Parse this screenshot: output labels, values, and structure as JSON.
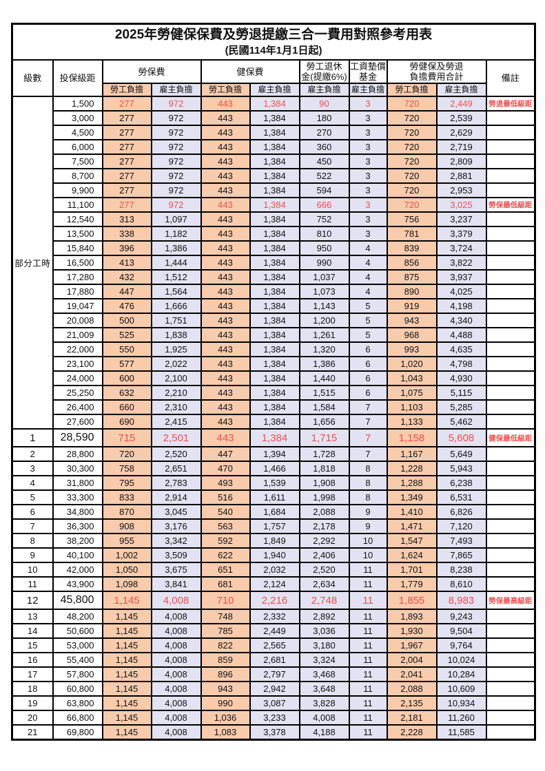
{
  "title": "2025年勞健保保費及勞退提繳三合一費用對照參考用表",
  "subtitle": "(民國114年1月1日起)",
  "colors": {
    "employee_col_bg": "#F8CBAD",
    "employer_col_bg": "#E2E2F2",
    "highlight_text": "#F0504F",
    "border": "#000000"
  },
  "header": {
    "level": "級數",
    "bracket": "投保級距",
    "labor": "勞保費",
    "health": "健保費",
    "pension_l1": "勞工退休",
    "pension_l2": "金(提繳6%)",
    "wage_l1": "工資墊償",
    "wage_l2": "基金",
    "total_l1": "勞健保及勞退",
    "total_l2": "負擔費用合計",
    "remark": "備註",
    "emp": "勞工負擔",
    "er": "雇主負擔"
  },
  "table": {
    "group_label": "部分工時",
    "group_span": 23,
    "value_col_styles": [
      "c-emp",
      "c-er",
      "c-emp",
      "c-er",
      "c-er",
      "c-er",
      "c-emp",
      "c-er"
    ],
    "rows": [
      {
        "level": "",
        "bracket": "1,500",
        "v": [
          "277",
          "972",
          "443",
          "1,384",
          "90",
          "3",
          "720",
          "2,449"
        ],
        "remark": "勞退最低級距",
        "red": true,
        "tall": false
      },
      {
        "level": "",
        "bracket": "3,000",
        "v": [
          "277",
          "972",
          "443",
          "1,384",
          "180",
          "3",
          "720",
          "2,539"
        ],
        "remark": "",
        "red": false,
        "tall": false
      },
      {
        "level": "",
        "bracket": "4,500",
        "v": [
          "277",
          "972",
          "443",
          "1,384",
          "270",
          "3",
          "720",
          "2,629"
        ],
        "remark": "",
        "red": false,
        "tall": false
      },
      {
        "level": "",
        "bracket": "6,000",
        "v": [
          "277",
          "972",
          "443",
          "1,384",
          "360",
          "3",
          "720",
          "2,719"
        ],
        "remark": "",
        "red": false,
        "tall": false
      },
      {
        "level": "",
        "bracket": "7,500",
        "v": [
          "277",
          "972",
          "443",
          "1,384",
          "450",
          "3",
          "720",
          "2,809"
        ],
        "remark": "",
        "red": false,
        "tall": false
      },
      {
        "level": "",
        "bracket": "8,700",
        "v": [
          "277",
          "972",
          "443",
          "1,384",
          "522",
          "3",
          "720",
          "2,881"
        ],
        "remark": "",
        "red": false,
        "tall": false
      },
      {
        "level": "",
        "bracket": "9,900",
        "v": [
          "277",
          "972",
          "443",
          "1,384",
          "594",
          "3",
          "720",
          "2,953"
        ],
        "remark": "",
        "red": false,
        "tall": false
      },
      {
        "level": "",
        "bracket": "11,100",
        "v": [
          "277",
          "972",
          "443",
          "1,384",
          "666",
          "3",
          "720",
          "3,025"
        ],
        "remark": "勞保最低級距",
        "red": true,
        "tall": false
      },
      {
        "level": "",
        "bracket": "12,540",
        "v": [
          "313",
          "1,097",
          "443",
          "1,384",
          "752",
          "3",
          "756",
          "3,237"
        ],
        "remark": "",
        "red": false,
        "tall": false
      },
      {
        "level": "",
        "bracket": "13,500",
        "v": [
          "338",
          "1,182",
          "443",
          "1,384",
          "810",
          "3",
          "781",
          "3,379"
        ],
        "remark": "",
        "red": false,
        "tall": false
      },
      {
        "level": "",
        "bracket": "15,840",
        "v": [
          "396",
          "1,386",
          "443",
          "1,384",
          "950",
          "4",
          "839",
          "3,724"
        ],
        "remark": "",
        "red": false,
        "tall": false
      },
      {
        "level": "",
        "bracket": "16,500",
        "v": [
          "413",
          "1,444",
          "443",
          "1,384",
          "990",
          "4",
          "856",
          "3,822"
        ],
        "remark": "",
        "red": false,
        "tall": false
      },
      {
        "level": "",
        "bracket": "17,280",
        "v": [
          "432",
          "1,512",
          "443",
          "1,384",
          "1,037",
          "4",
          "875",
          "3,937"
        ],
        "remark": "",
        "red": false,
        "tall": false
      },
      {
        "level": "",
        "bracket": "17,880",
        "v": [
          "447",
          "1,564",
          "443",
          "1,384",
          "1,073",
          "4",
          "890",
          "4,025"
        ],
        "remark": "",
        "red": false,
        "tall": false
      },
      {
        "level": "",
        "bracket": "19,047",
        "v": [
          "476",
          "1,666",
          "443",
          "1,384",
          "1,143",
          "5",
          "919",
          "4,198"
        ],
        "remark": "",
        "red": false,
        "tall": false
      },
      {
        "level": "",
        "bracket": "20,008",
        "v": [
          "500",
          "1,751",
          "443",
          "1,384",
          "1,200",
          "5",
          "943",
          "4,340"
        ],
        "remark": "",
        "red": false,
        "tall": false
      },
      {
        "level": "",
        "bracket": "21,009",
        "v": [
          "525",
          "1,838",
          "443",
          "1,384",
          "1,261",
          "5",
          "968",
          "4,488"
        ],
        "remark": "",
        "red": false,
        "tall": false
      },
      {
        "level": "",
        "bracket": "22,000",
        "v": [
          "550",
          "1,925",
          "443",
          "1,384",
          "1,320",
          "6",
          "993",
          "4,635"
        ],
        "remark": "",
        "red": false,
        "tall": false
      },
      {
        "level": "",
        "bracket": "23,100",
        "v": [
          "577",
          "2,022",
          "443",
          "1,384",
          "1,386",
          "6",
          "1,020",
          "4,798"
        ],
        "remark": "",
        "red": false,
        "tall": false
      },
      {
        "level": "",
        "bracket": "24,000",
        "v": [
          "600",
          "2,100",
          "443",
          "1,384",
          "1,440",
          "6",
          "1,043",
          "4,930"
        ],
        "remark": "",
        "red": false,
        "tall": false
      },
      {
        "level": "",
        "bracket": "25,250",
        "v": [
          "632",
          "2,210",
          "443",
          "1,384",
          "1,515",
          "6",
          "1,075",
          "5,115"
        ],
        "remark": "",
        "red": false,
        "tall": false
      },
      {
        "level": "",
        "bracket": "26,400",
        "v": [
          "660",
          "2,310",
          "443",
          "1,384",
          "1,584",
          "7",
          "1,103",
          "5,285"
        ],
        "remark": "",
        "red": false,
        "tall": false
      },
      {
        "level": "",
        "bracket": "27,600",
        "v": [
          "690",
          "2,415",
          "443",
          "1,384",
          "1,656",
          "7",
          "1,133",
          "5,462"
        ],
        "remark": "",
        "red": false,
        "tall": false
      },
      {
        "level": "1",
        "bracket": "28,590",
        "v": [
          "715",
          "2,501",
          "443",
          "1,384",
          "1,715",
          "7",
          "1,158",
          "5,608"
        ],
        "remark": "健保最低級距",
        "red": true,
        "tall": true
      },
      {
        "level": "2",
        "bracket": "28,800",
        "v": [
          "720",
          "2,520",
          "447",
          "1,394",
          "1,728",
          "7",
          "1,167",
          "5,649"
        ],
        "remark": "",
        "red": false,
        "tall": false
      },
      {
        "level": "3",
        "bracket": "30,300",
        "v": [
          "758",
          "2,651",
          "470",
          "1,466",
          "1,818",
          "8",
          "1,228",
          "5,943"
        ],
        "remark": "",
        "red": false,
        "tall": false
      },
      {
        "level": "4",
        "bracket": "31,800",
        "v": [
          "795",
          "2,783",
          "493",
          "1,539",
          "1,908",
          "8",
          "1,288",
          "6,238"
        ],
        "remark": "",
        "red": false,
        "tall": false
      },
      {
        "level": "5",
        "bracket": "33,300",
        "v": [
          "833",
          "2,914",
          "516",
          "1,611",
          "1,998",
          "8",
          "1,349",
          "6,531"
        ],
        "remark": "",
        "red": false,
        "tall": false
      },
      {
        "level": "6",
        "bracket": "34,800",
        "v": [
          "870",
          "3,045",
          "540",
          "1,684",
          "2,088",
          "9",
          "1,410",
          "6,826"
        ],
        "remark": "",
        "red": false,
        "tall": false
      },
      {
        "level": "7",
        "bracket": "36,300",
        "v": [
          "908",
          "3,176",
          "563",
          "1,757",
          "2,178",
          "9",
          "1,471",
          "7,120"
        ],
        "remark": "",
        "red": false,
        "tall": false
      },
      {
        "level": "8",
        "bracket": "38,200",
        "v": [
          "955",
          "3,342",
          "592",
          "1,849",
          "2,292",
          "10",
          "1,547",
          "7,493"
        ],
        "remark": "",
        "red": false,
        "tall": false
      },
      {
        "level": "9",
        "bracket": "40,100",
        "v": [
          "1,002",
          "3,509",
          "622",
          "1,940",
          "2,406",
          "10",
          "1,624",
          "7,865"
        ],
        "remark": "",
        "red": false,
        "tall": false
      },
      {
        "level": "10",
        "bracket": "42,000",
        "v": [
          "1,050",
          "3,675",
          "651",
          "2,032",
          "2,520",
          "11",
          "1,701",
          "8,238"
        ],
        "remark": "",
        "red": false,
        "tall": false
      },
      {
        "level": "11",
        "bracket": "43,900",
        "v": [
          "1,098",
          "3,841",
          "681",
          "2,124",
          "2,634",
          "11",
          "1,779",
          "8,610"
        ],
        "remark": "",
        "red": false,
        "tall": false
      },
      {
        "level": "12",
        "bracket": "45,800",
        "v": [
          "1,145",
          "4,008",
          "710",
          "2,216",
          "2,748",
          "11",
          "1,855",
          "8,983"
        ],
        "remark": "勞保最高級距",
        "red": true,
        "tall": true
      },
      {
        "level": "13",
        "bracket": "48,200",
        "v": [
          "1,145",
          "4,008",
          "748",
          "2,332",
          "2,892",
          "11",
          "1,893",
          "9,243"
        ],
        "remark": "",
        "red": false,
        "tall": false
      },
      {
        "level": "14",
        "bracket": "50,600",
        "v": [
          "1,145",
          "4,008",
          "785",
          "2,449",
          "3,036",
          "11",
          "1,930",
          "9,504"
        ],
        "remark": "",
        "red": false,
        "tall": false
      },
      {
        "level": "15",
        "bracket": "53,000",
        "v": [
          "1,145",
          "4,008",
          "822",
          "2,565",
          "3,180",
          "11",
          "1,967",
          "9,764"
        ],
        "remark": "",
        "red": false,
        "tall": false
      },
      {
        "level": "16",
        "bracket": "55,400",
        "v": [
          "1,145",
          "4,008",
          "859",
          "2,681",
          "3,324",
          "11",
          "2,004",
          "10,024"
        ],
        "remark": "",
        "red": false,
        "tall": false
      },
      {
        "level": "17",
        "bracket": "57,800",
        "v": [
          "1,145",
          "4,008",
          "896",
          "2,797",
          "3,468",
          "11",
          "2,041",
          "10,284"
        ],
        "remark": "",
        "red": false,
        "tall": false
      },
      {
        "level": "18",
        "bracket": "60,800",
        "v": [
          "1,145",
          "4,008",
          "943",
          "2,942",
          "3,648",
          "11",
          "2,088",
          "10,609"
        ],
        "remark": "",
        "red": false,
        "tall": false
      },
      {
        "level": "19",
        "bracket": "63,800",
        "v": [
          "1,145",
          "4,008",
          "990",
          "3,087",
          "3,828",
          "11",
          "2,135",
          "10,934"
        ],
        "remark": "",
        "red": false,
        "tall": false
      },
      {
        "level": "20",
        "bracket": "66,800",
        "v": [
          "1,145",
          "4,008",
          "1,036",
          "3,233",
          "4,008",
          "11",
          "2,181",
          "11,260"
        ],
        "remark": "",
        "red": false,
        "tall": false
      },
      {
        "level": "21",
        "bracket": "69,800",
        "v": [
          "1,145",
          "4,008",
          "1,083",
          "3,378",
          "4,188",
          "11",
          "2,228",
          "11,585"
        ],
        "remark": "",
        "red": false,
        "tall": false
      }
    ]
  }
}
